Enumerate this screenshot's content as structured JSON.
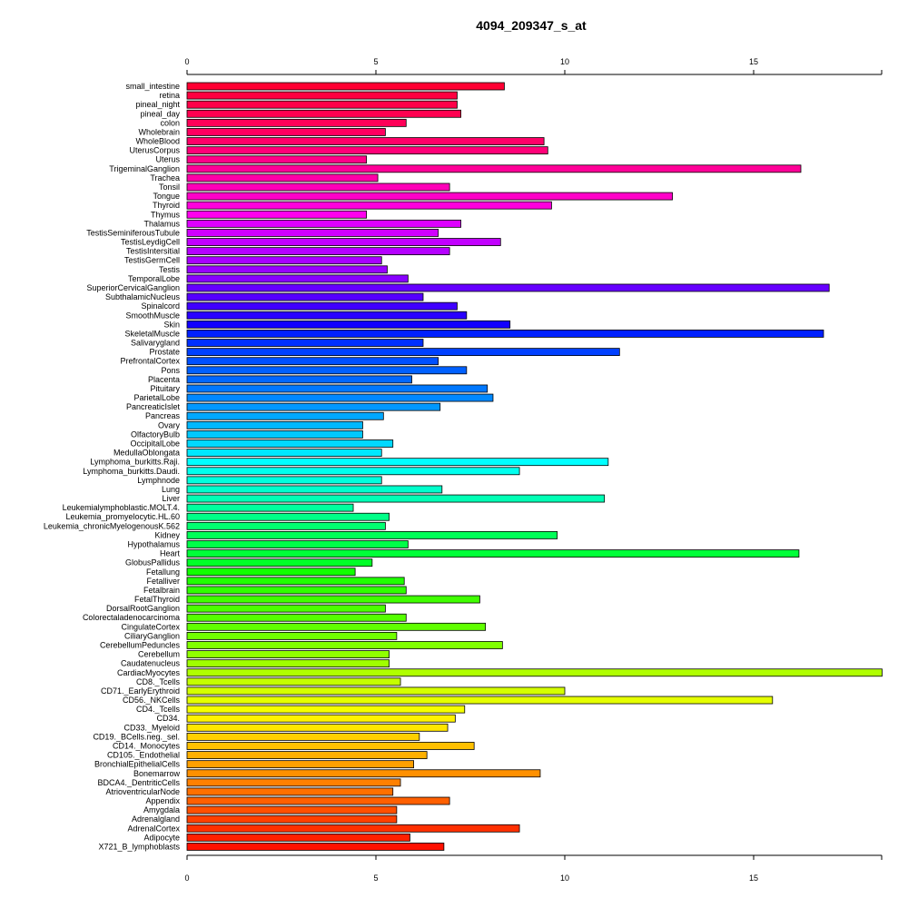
{
  "chart_data": {
    "type": "bar",
    "orientation": "horizontal",
    "title": "4094_209347_s_at",
    "xlabel": "",
    "ylabel": "",
    "xlim": [
      0,
      18.4
    ],
    "x_ticks": [
      0,
      5,
      10,
      15
    ],
    "x_tick_labels": [
      "0",
      "5",
      "10",
      "15"
    ],
    "grid": false,
    "legend": "none",
    "categories": [
      "small_intestine",
      "retina",
      "pineal_night",
      "pineal_day",
      "colon",
      "Wholebrain",
      "WholeBlood",
      "UterusCorpus",
      "Uterus",
      "TrigeminalGanglion",
      "Trachea",
      "Tonsil",
      "Tongue",
      "Thyroid",
      "Thymus",
      "Thalamus",
      "TestisSeminiferousTubule",
      "TestisLeydigCell",
      "TestisIntersitial",
      "TestisGermCell",
      "Testis",
      "TemporalLobe",
      "SuperiorCervicalGanglion",
      "SubthalamicNucleus",
      "Spinalcord",
      "SmoothMuscle",
      "Skin",
      "SkeletalMuscle",
      "Salivarygland",
      "Prostate",
      "PrefrontalCortex",
      "Pons",
      "Placenta",
      "Pituitary",
      "ParietalLobe",
      "PancreaticIslet",
      "Pancreas",
      "Ovary",
      "OlfactoryBulb",
      "OccipitalLobe",
      "MedullaOblongata",
      "Lymphoma_burkitts.Raji.",
      "Lymphoma_burkitts.Daudi.",
      "Lymphnode",
      "Lung",
      "Liver",
      "Leukemialymphoblastic.MOLT.4.",
      "Leukemia_promyelocytic.HL.60",
      "Leukemia_chronicMyelogenousK.562",
      "Kidney",
      "Hypothalamus",
      "Heart",
      "GlobusPallidus",
      "Fetallung",
      "Fetalliver",
      "Fetalbrain",
      "FetalThyroid",
      "DorsalRootGanglion",
      "Colorectaladenocarcinoma",
      "CingulateCortex",
      "CiliaryGanglion",
      "CerebellumPeduncles",
      "Cerebellum",
      "Caudatenucleus",
      "CardiacMyocytes",
      "CD8._Tcells",
      "CD71._EarlyErythroid",
      "CD56._NKCells",
      "CD4._Tcells",
      "CD34.",
      "CD33._Myeloid",
      "CD19._BCells.neg._sel.",
      "CD14._Monocytes",
      "CD105._Endothelial",
      "BronchialEpithelialCells",
      "Bonemarrow",
      "BDCA4._DentriticCells",
      "AtrioventricularNode",
      "Appendix",
      "Amygdala",
      "Adrenalgland",
      "AdrenalCortex",
      "Adipocyte",
      "X721_B_lymphoblasts"
    ],
    "values": [
      8.4,
      7.15,
      7.15,
      7.25,
      5.8,
      5.25,
      9.45,
      9.55,
      4.75,
      16.25,
      5.05,
      6.95,
      12.85,
      9.65,
      4.75,
      7.25,
      6.65,
      8.3,
      6.95,
      5.15,
      5.3,
      5.85,
      17.0,
      6.25,
      7.15,
      7.4,
      8.55,
      16.85,
      6.25,
      11.45,
      6.65,
      7.4,
      5.95,
      7.95,
      8.1,
      6.7,
      5.2,
      4.65,
      4.65,
      5.45,
      5.15,
      11.15,
      8.8,
      5.15,
      6.75,
      11.05,
      4.4,
      5.35,
      5.25,
      9.8,
      5.85,
      16.2,
      4.9,
      4.45,
      5.75,
      5.8,
      7.75,
      5.25,
      5.8,
      7.9,
      5.55,
      8.35,
      5.35,
      5.35,
      18.4,
      5.65,
      10.0,
      15.5,
      7.35,
      7.1,
      6.9,
      6.15,
      7.6,
      6.35,
      6.0,
      9.35,
      5.65,
      5.45,
      6.95,
      5.55,
      5.55,
      8.8,
      5.9,
      6.8
    ],
    "colors": [
      "#FF0033",
      "#FF0040",
      "#FF0048",
      "#FF0050",
      "#FF0058",
      "#FF0060",
      "#FF0068",
      "#FF0078",
      "#FF0088",
      "#FF0098",
      "#FF00A8",
      "#FF00B8",
      "#FF00C8",
      "#FF00DD",
      "#FF00EE",
      "#DD00FF",
      "#D000FF",
      "#C200FF",
      "#B500FF",
      "#A800FF",
      "#9800FF",
      "#8800FF",
      "#6600FF",
      "#5500FF",
      "#4000FF",
      "#2A00FF",
      "#1100FF",
      "#0020FF",
      "#0030FF",
      "#0040FF",
      "#0050FF",
      "#0060FF",
      "#0068FF",
      "#0078FF",
      "#0088FF",
      "#0098FF",
      "#00A8FF",
      "#00B8FF",
      "#00C8FF",
      "#00D8FF",
      "#00E8FF",
      "#00FFFF",
      "#00FFEE",
      "#00FFDD",
      "#00FFCC",
      "#00FFB5",
      "#00FF9E",
      "#00FF88",
      "#00FF70",
      "#00FF58",
      "#00FF48",
      "#00FF38",
      "#00FF28",
      "#11FF00",
      "#20FF00",
      "#30FF00",
      "#40FF00",
      "#4AFF00",
      "#55FF00",
      "#60FF00",
      "#70FF00",
      "#80FF00",
      "#90FF00",
      "#A0FF00",
      "#B0FF00",
      "#C5FF00",
      "#D5FF00",
      "#E5FF00",
      "#F5FF00",
      "#FFF200",
      "#FFE500",
      "#FFD000",
      "#FFC000",
      "#FFB000",
      "#FFA000",
      "#FF9000",
      "#FF8000",
      "#FF7000",
      "#FF6000",
      "#FF5000",
      "#FF4000",
      "#FF3000",
      "#FF2000",
      "#FF1000"
    ]
  }
}
